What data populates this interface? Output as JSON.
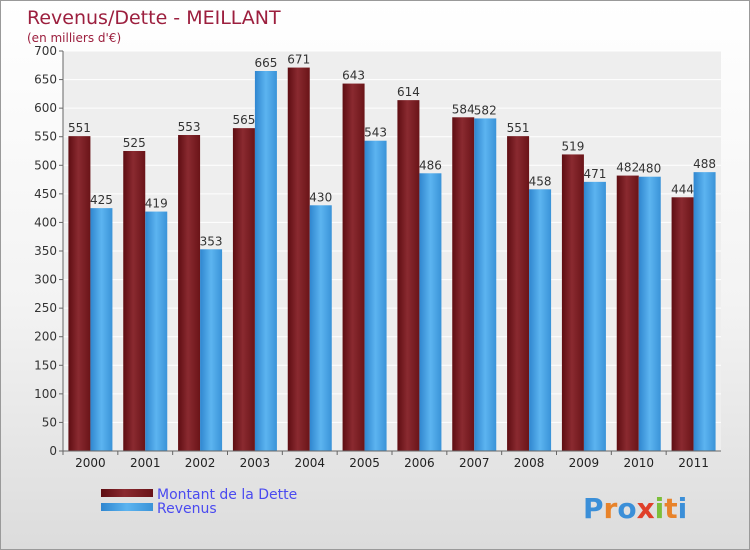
{
  "chart_data": {
    "type": "bar",
    "title": "Revenus/Dette - MEILLANT",
    "subtitle": "(en milliers d'€)",
    "xlabel": "",
    "ylabel": "",
    "ylim": [
      0,
      700
    ],
    "yticks": [
      0,
      50,
      100,
      150,
      200,
      250,
      300,
      350,
      400,
      450,
      500,
      550,
      600,
      650,
      700
    ],
    "grid": true,
    "legend_position": "bottom-left",
    "categories": [
      "2000",
      "2001",
      "2002",
      "2003",
      "2004",
      "2005",
      "2006",
      "2007",
      "2008",
      "2009",
      "2010",
      "2011"
    ],
    "series": [
      {
        "name": "Montant de la Dette",
        "color": "#7a1a1f",
        "values": [
          551,
          525,
          553,
          565,
          671,
          643,
          614,
          584,
          551,
          519,
          482,
          444
        ]
      },
      {
        "name": "Revenus",
        "color": "#4aa6e8",
        "values": [
          425,
          419,
          353,
          665,
          430,
          543,
          486,
          582,
          458,
          471,
          480,
          488
        ]
      }
    ]
  },
  "brand": {
    "letters": [
      "P",
      "r",
      "o",
      "x",
      "i",
      "t",
      "i"
    ],
    "colors": [
      "#3b8fd8",
      "#e8832a",
      "#3b8fd8",
      "#e0402a",
      "#7cbf3a",
      "#e8832a",
      "#3b8fd8"
    ]
  }
}
